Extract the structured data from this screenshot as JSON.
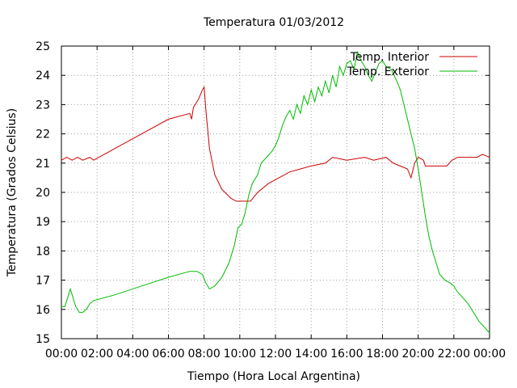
{
  "chart_data": {
    "type": "line",
    "title": "Temperatura 01/03/2012",
    "xlabel": "Tiempo (Hora Local Argentina)",
    "ylabel": "Temperatura (Grados Celsius)",
    "xlim": [
      0,
      24
    ],
    "ylim": [
      15,
      25
    ],
    "grid": true,
    "legend_position": "top-right",
    "x_ticks": [
      "00:00",
      "02:00",
      "04:00",
      "06:00",
      "08:00",
      "10:00",
      "12:00",
      "14:00",
      "16:00",
      "18:00",
      "20:00",
      "22:00",
      "00:00"
    ],
    "y_ticks": [
      "15",
      "16",
      "17",
      "18",
      "19",
      "20",
      "21",
      "22",
      "23",
      "24",
      "25"
    ],
    "series": [
      {
        "name": "Temp. Interior",
        "color": "#cc0000",
        "points": [
          [
            0,
            21.1
          ],
          [
            0.3,
            21.2
          ],
          [
            0.6,
            21.1
          ],
          [
            0.9,
            21.2
          ],
          [
            1.2,
            21.1
          ],
          [
            1.6,
            21.2
          ],
          [
            1.8,
            21.1
          ],
          [
            3,
            21.5
          ],
          [
            4.5,
            22.0
          ],
          [
            6,
            22.5
          ],
          [
            7.2,
            22.7
          ],
          [
            7.3,
            22.5
          ],
          [
            7.4,
            22.9
          ],
          [
            7.7,
            23.2
          ],
          [
            7.9,
            23.5
          ],
          [
            8.0,
            23.6
          ],
          [
            8.1,
            22.8
          ],
          [
            8.3,
            21.5
          ],
          [
            8.6,
            20.6
          ],
          [
            9.0,
            20.1
          ],
          [
            9.5,
            19.8
          ],
          [
            9.8,
            19.7
          ],
          [
            10.6,
            19.7
          ],
          [
            11.0,
            20.0
          ],
          [
            11.6,
            20.3
          ],
          [
            12.2,
            20.5
          ],
          [
            12.8,
            20.7
          ],
          [
            13.4,
            20.8
          ],
          [
            14.0,
            20.9
          ],
          [
            14.8,
            21.0
          ],
          [
            15.2,
            21.2
          ],
          [
            16.0,
            21.1
          ],
          [
            17.0,
            21.2
          ],
          [
            17.5,
            21.1
          ],
          [
            18.2,
            21.2
          ],
          [
            18.6,
            21.0
          ],
          [
            19.0,
            20.9
          ],
          [
            19.4,
            20.8
          ],
          [
            19.6,
            20.5
          ],
          [
            19.8,
            21.0
          ],
          [
            20.0,
            21.2
          ],
          [
            20.3,
            21.1
          ],
          [
            20.4,
            20.9
          ],
          [
            21.6,
            20.9
          ],
          [
            21.9,
            21.1
          ],
          [
            22.2,
            21.2
          ],
          [
            23.3,
            21.2
          ],
          [
            23.6,
            21.3
          ],
          [
            24,
            21.2
          ]
        ]
      },
      {
        "name": "Temp. Exterior",
        "color": "#00bb00",
        "points": [
          [
            0,
            16.1
          ],
          [
            0.2,
            16.1
          ],
          [
            0.35,
            16.4
          ],
          [
            0.5,
            16.7
          ],
          [
            0.6,
            16.5
          ],
          [
            0.8,
            16.1
          ],
          [
            1.0,
            15.9
          ],
          [
            1.2,
            15.9
          ],
          [
            1.4,
            16.0
          ],
          [
            1.6,
            16.2
          ],
          [
            1.8,
            16.3
          ],
          [
            3,
            16.5
          ],
          [
            4.5,
            16.8
          ],
          [
            6,
            17.1
          ],
          [
            7.2,
            17.3
          ],
          [
            7.6,
            17.3
          ],
          [
            7.9,
            17.2
          ],
          [
            8.1,
            16.9
          ],
          [
            8.3,
            16.7
          ],
          [
            8.6,
            16.8
          ],
          [
            9.0,
            17.1
          ],
          [
            9.4,
            17.6
          ],
          [
            9.7,
            18.2
          ],
          [
            9.9,
            18.8
          ],
          [
            10.1,
            18.9
          ],
          [
            10.3,
            19.3
          ],
          [
            10.5,
            19.9
          ],
          [
            10.7,
            20.3
          ],
          [
            11.0,
            20.6
          ],
          [
            11.2,
            21.0
          ],
          [
            11.5,
            21.2
          ],
          [
            11.8,
            21.4
          ],
          [
            12.0,
            21.6
          ],
          [
            12.2,
            21.9
          ],
          [
            12.4,
            22.3
          ],
          [
            12.6,
            22.6
          ],
          [
            12.8,
            22.8
          ],
          [
            13.0,
            22.5
          ],
          [
            13.2,
            23.0
          ],
          [
            13.4,
            22.7
          ],
          [
            13.6,
            23.3
          ],
          [
            13.8,
            23.0
          ],
          [
            14.0,
            23.5
          ],
          [
            14.2,
            23.1
          ],
          [
            14.4,
            23.6
          ],
          [
            14.6,
            23.3
          ],
          [
            14.8,
            23.8
          ],
          [
            15.0,
            23.4
          ],
          [
            15.2,
            24.0
          ],
          [
            15.4,
            23.6
          ],
          [
            15.6,
            24.3
          ],
          [
            15.8,
            24.0
          ],
          [
            16.0,
            24.4
          ],
          [
            16.2,
            24.5
          ],
          [
            16.4,
            24.2
          ],
          [
            16.6,
            24.8
          ],
          [
            16.8,
            24.5
          ],
          [
            17.0,
            24.3
          ],
          [
            17.2,
            24.0
          ],
          [
            17.4,
            23.8
          ],
          [
            17.6,
            24.1
          ],
          [
            17.8,
            24.4
          ],
          [
            18.0,
            24.5
          ],
          [
            18.2,
            24.3
          ],
          [
            18.5,
            24.2
          ],
          [
            18.8,
            23.8
          ],
          [
            19.0,
            23.5
          ],
          [
            19.2,
            23.0
          ],
          [
            19.4,
            22.5
          ],
          [
            19.6,
            22.0
          ],
          [
            19.8,
            21.5
          ],
          [
            20.0,
            20.8
          ],
          [
            20.2,
            20.0
          ],
          [
            20.4,
            19.2
          ],
          [
            20.6,
            18.5
          ],
          [
            20.8,
            18.0
          ],
          [
            21.0,
            17.6
          ],
          [
            21.2,
            17.2
          ],
          [
            21.5,
            17.0
          ],
          [
            21.8,
            16.9
          ],
          [
            22.0,
            16.8
          ],
          [
            22.2,
            16.6
          ],
          [
            22.5,
            16.4
          ],
          [
            22.8,
            16.2
          ],
          [
            23.1,
            15.9
          ],
          [
            23.4,
            15.6
          ],
          [
            23.7,
            15.4
          ],
          [
            24,
            15.2
          ]
        ]
      }
    ]
  }
}
